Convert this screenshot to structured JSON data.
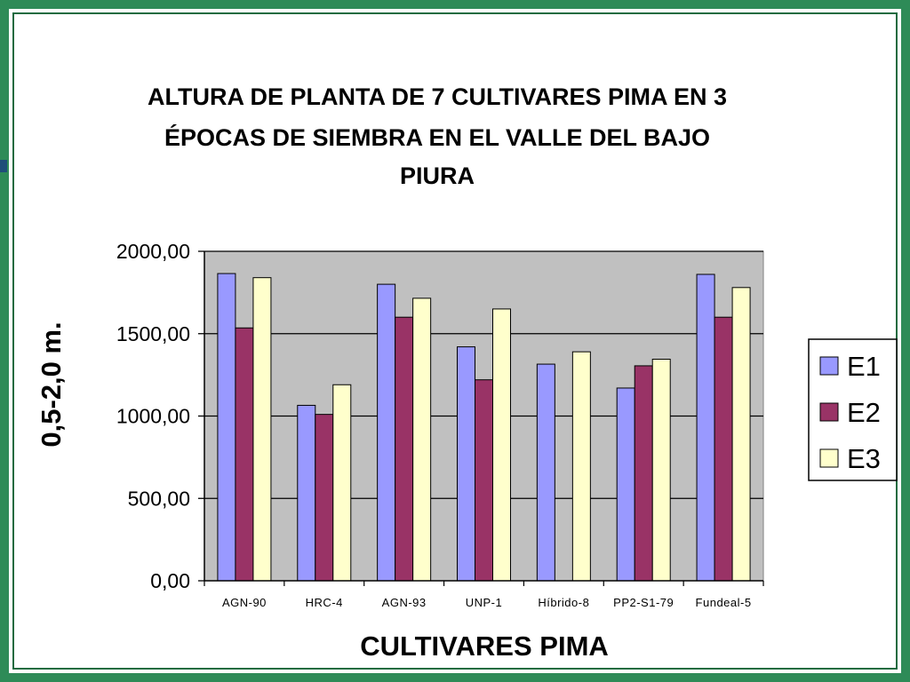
{
  "chart_data": {
    "type": "bar",
    "title_lines": [
      "ALTURA DE PLANTA DE 7 CULTIVARES PIMA EN 3",
      "ÉPOCAS DE SIEMBRA EN EL VALLE DEL BAJO",
      "PIURA"
    ],
    "xlabel": "CULTIVARES PIMA",
    "ylabel": "0,5-2,0 m.",
    "ylim": [
      0,
      2000
    ],
    "yticks": [
      0,
      500,
      1000,
      1500,
      2000
    ],
    "ytick_labels": [
      "0,00",
      "500,00",
      "1000,00",
      "1500,00",
      "2000,00"
    ],
    "categories": [
      "AGN-90",
      "HRC-4",
      "AGN-93",
      "UNP-1",
      "Híbrido-8",
      "PP2-S1-79",
      "Fundeal-5"
    ],
    "series": [
      {
        "name": "E1",
        "color": "#9999ff",
        "values": [
          1865,
          1065,
          1800,
          1420,
          1315,
          1170,
          1860
        ]
      },
      {
        "name": "E2",
        "color": "#993366",
        "values": [
          1535,
          1010,
          1600,
          1220,
          null,
          1305,
          1600
        ]
      },
      {
        "name": "E3",
        "color": "#ffffcc",
        "values": [
          1840,
          1190,
          1715,
          1650,
          1390,
          1345,
          1780
        ]
      }
    ],
    "grid": true,
    "plot_background": "#c0c0c0",
    "legend_position": "right"
  }
}
